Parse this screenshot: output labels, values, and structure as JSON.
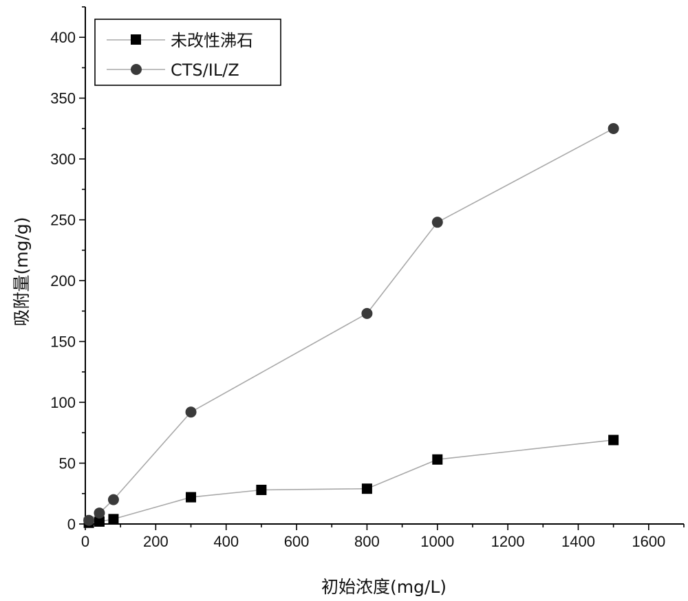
{
  "chart_data": {
    "type": "line",
    "xlabel": "初始浓度(mg/L)",
    "ylabel": "吸附量(mg/g)",
    "xlim": [
      0,
      1700
    ],
    "ylim": [
      0,
      425
    ],
    "xticks": [
      0,
      200,
      400,
      600,
      800,
      1000,
      1200,
      1400,
      1600
    ],
    "yticks": [
      0,
      50,
      100,
      150,
      200,
      250,
      300,
      350,
      400
    ],
    "legend_position": "top-left",
    "grid": false,
    "series": [
      {
        "name": "未改性沸石",
        "marker": "square",
        "color": "#000000",
        "line_color": "#a8a8a8",
        "x": [
          10,
          40,
          80,
          300,
          500,
          800,
          1000,
          1500
        ],
        "y": [
          1,
          2,
          4,
          22,
          28,
          29,
          53,
          69
        ]
      },
      {
        "name": "CTS/IL/Z",
        "marker": "circle",
        "color": "#3a3a3a",
        "line_color": "#a8a8a8",
        "x": [
          10,
          40,
          80,
          300,
          800,
          1000,
          1500
        ],
        "y": [
          3,
          9,
          20,
          92,
          173,
          248,
          325
        ]
      }
    ]
  }
}
